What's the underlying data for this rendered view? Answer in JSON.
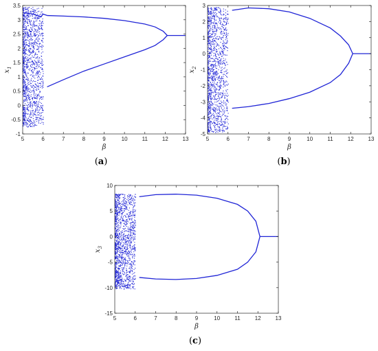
{
  "figure": {
    "captions": [
      {
        "open": "(",
        "letter": "a",
        "close": ")"
      },
      {
        "open": "(",
        "letter": "b",
        "close": ")"
      },
      {
        "open": "(",
        "letter": "c",
        "close": ")"
      }
    ]
  },
  "chart_data": [
    {
      "type": "scatter",
      "title": "",
      "xlabel": "β",
      "ylabel": "x",
      "ylabel_sub": "1",
      "xlim": [
        5,
        13
      ],
      "ylim": [
        -1,
        3.5
      ],
      "xticks": [
        "5",
        "6",
        "7",
        "8",
        "9",
        "10",
        "11",
        "12",
        "13"
      ],
      "yticks": [
        "-1",
        "-0.5",
        "0",
        "0.5",
        "1",
        "1.5",
        "2",
        "2.5",
        "3",
        "3.5"
      ],
      "color": "#1f24d6",
      "series": [
        {
          "x": [
            5.0,
            5.5,
            5.9,
            6.0,
            6.2
          ],
          "y": [
            3.25,
            3.2,
            3.1,
            3.2,
            3.15
          ]
        },
        {
          "x": [
            6.2,
            7.0,
            8.0,
            9.0,
            10.0,
            11.0,
            11.5,
            11.9,
            12.1
          ],
          "y": [
            3.15,
            3.13,
            3.1,
            3.05,
            2.97,
            2.85,
            2.75,
            2.6,
            2.45
          ]
        },
        {
          "x": [
            6.2,
            7.0,
            8.0,
            9.0,
            10.0,
            11.0,
            11.5,
            11.9,
            12.1
          ],
          "y": [
            0.65,
            0.9,
            1.2,
            1.45,
            1.7,
            1.95,
            2.1,
            2.3,
            2.45
          ]
        },
        {
          "x": [
            12.1,
            12.5,
            13.0
          ],
          "y": [
            2.45,
            2.45,
            2.45
          ]
        }
      ],
      "chaos": {
        "x": [
          5.0,
          6.0
        ],
        "y": [
          -0.75,
          3.45
        ]
      }
    },
    {
      "type": "scatter",
      "title": "",
      "xlabel": "β",
      "ylabel": "x",
      "ylabel_sub": "2",
      "xlim": [
        5,
        13
      ],
      "ylim": [
        -5,
        3
      ],
      "xticks": [
        "5",
        "6",
        "7",
        "8",
        "9",
        "10",
        "11",
        "12",
        "13"
      ],
      "yticks": [
        "-5",
        "-4",
        "-3",
        "-2",
        "-1",
        "0",
        "1",
        "2",
        "3"
      ],
      "color": "#1f24d6",
      "series": [
        {
          "x": [
            6.2,
            7.0,
            8.0,
            9.0,
            10.0,
            11.0,
            11.5,
            11.9,
            12.1
          ],
          "y": [
            2.7,
            2.85,
            2.8,
            2.6,
            2.2,
            1.6,
            1.1,
            0.55,
            0.0
          ]
        },
        {
          "x": [
            6.2,
            7.0,
            8.0,
            9.0,
            10.0,
            11.0,
            11.5,
            11.9,
            12.1
          ],
          "y": [
            -3.4,
            -3.3,
            -3.1,
            -2.8,
            -2.4,
            -1.8,
            -1.3,
            -0.6,
            0.0
          ]
        },
        {
          "x": [
            12.1,
            12.5,
            13.0
          ],
          "y": [
            0.0,
            0.0,
            0.0
          ]
        }
      ],
      "chaos": {
        "x": [
          5.0,
          6.0
        ],
        "y": [
          -4.9,
          2.9
        ]
      }
    },
    {
      "type": "scatter",
      "title": "",
      "xlabel": "β",
      "ylabel": "x",
      "ylabel_sub": "3",
      "xlim": [
        5,
        13
      ],
      "ylim": [
        -15,
        10
      ],
      "xticks": [
        "5",
        "6",
        "7",
        "8",
        "9",
        "10",
        "11",
        "12",
        "13"
      ],
      "yticks": [
        "-15",
        "-10",
        "-5",
        "0",
        "5",
        "10"
      ],
      "color": "#1f24d6",
      "series": [
        {
          "x": [
            6.2,
            7.0,
            8.0,
            9.0,
            10.0,
            11.0,
            11.5,
            11.9,
            12.1
          ],
          "y": [
            7.8,
            8.2,
            8.3,
            8.1,
            7.5,
            6.3,
            5.0,
            3.0,
            0.0
          ]
        },
        {
          "x": [
            6.2,
            7.0,
            8.0,
            9.0,
            10.0,
            11.0,
            11.5,
            11.9,
            12.1
          ],
          "y": [
            -8.0,
            -8.3,
            -8.4,
            -8.2,
            -7.6,
            -6.4,
            -5.0,
            -3.0,
            0.0
          ]
        },
        {
          "x": [
            12.1,
            12.5,
            13.0
          ],
          "y": [
            0.0,
            0.0,
            0.0
          ]
        }
      ],
      "chaos": {
        "x": [
          5.0,
          6.0
        ],
        "y": [
          -10.2,
          8.4
        ]
      }
    }
  ]
}
